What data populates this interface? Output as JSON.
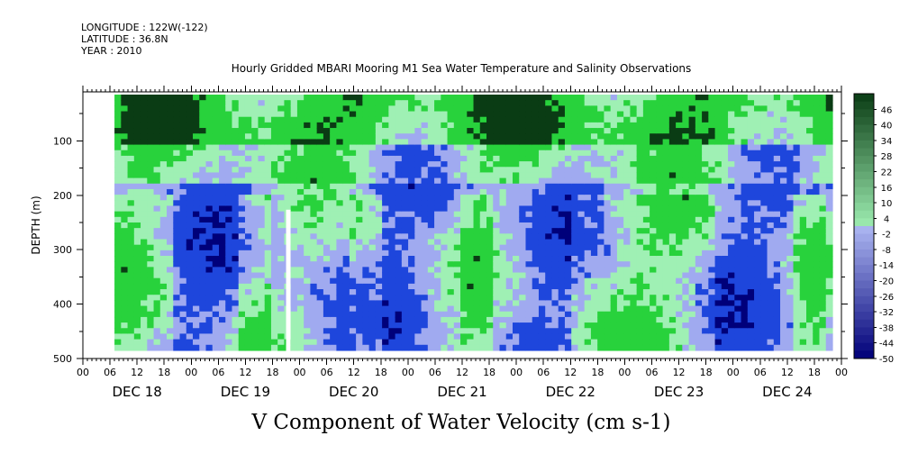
{
  "header": {
    "longitude": "LONGITUDE : 122W(-122)",
    "latitude": "LATITUDE : 36.8N",
    "year": "YEAR : 2010"
  },
  "chart_data": {
    "type": "heatmap",
    "title": "Hourly Gridded MBARI Mooring M1 Sea Water Temperature and Salinity Observations",
    "subtitle": "V Component of Water Velocity (cm s-1)",
    "xlabel": "",
    "ylabel": "DEPTH (m)",
    "x_hour_ticks": [
      "00",
      "06",
      "12",
      "18",
      "00",
      "06",
      "12",
      "18",
      "00",
      "06",
      "12",
      "18",
      "00",
      "06",
      "12",
      "18",
      "00",
      "06",
      "12",
      "18",
      "00",
      "06",
      "12",
      "18",
      "00",
      "06",
      "12",
      "18",
      "00"
    ],
    "x_day_labels": [
      "DEC 18",
      "DEC 19",
      "DEC 20",
      "DEC 21",
      "DEC 22",
      "DEC 23",
      "DEC 24"
    ],
    "xlim": [
      "2010-12-18 00:00",
      "2010-12-25 00:00"
    ],
    "data_xlim": [
      "2010-12-18 07:00",
      "2010-12-24 22:00"
    ],
    "y_ticks": [
      "100",
      "200",
      "300",
      "400",
      "500"
    ],
    "ylim": [
      500,
      10
    ],
    "data_ylim": [
      485,
      15
    ],
    "colorbar_labels": [
      "46",
      "40",
      "34",
      "28",
      "22",
      "16",
      "10",
      "4",
      "-2",
      "-8",
      "-14",
      "-20",
      "-26",
      "-32",
      "-38",
      "-44",
      "-50"
    ],
    "colorbar_range": [
      -50,
      52
    ],
    "colors": {
      "strong_negative": "#00007a",
      "negative": "#1e46dc",
      "weak_negative": "#a0aaf0",
      "weak_positive": "#9ff0b4",
      "positive": "#28d23c",
      "strong_positive": "#0a3c14"
    },
    "field_description_bands": [
      {
        "depth_range": [
          15,
          110
        ],
        "value": 25
      },
      {
        "depth_range": [
          110,
          180
        ],
        "value": 5
      },
      {
        "depth_range": [
          180,
          485
        ],
        "value": -10
      }
    ],
    "data_gap": {
      "from": "2010-12-19 21:00",
      "to": "2010-12-19 22:00"
    }
  }
}
